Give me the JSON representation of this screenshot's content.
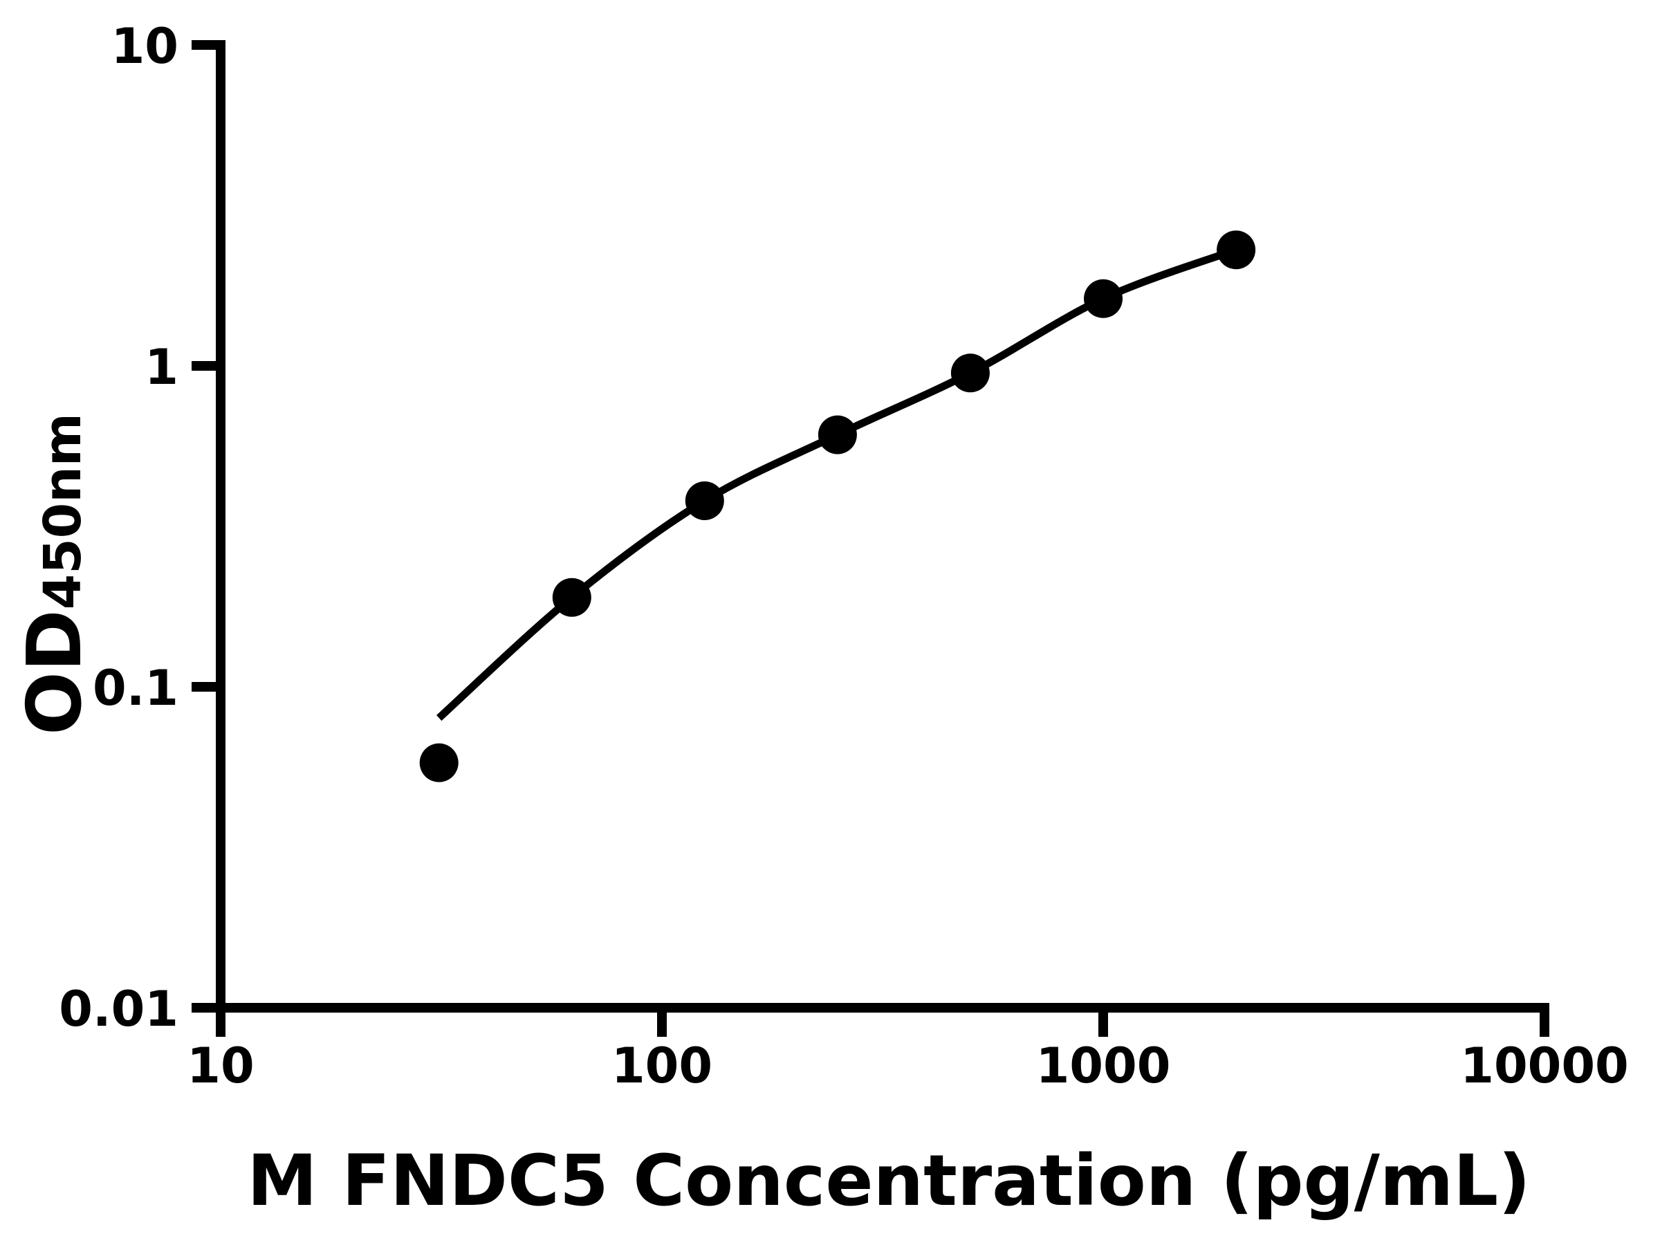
{
  "figure": {
    "background_color": "#ffffff",
    "ink_color": "#000000"
  },
  "chart_data": {
    "type": "scatter",
    "subtype": "elisa-standard-curve",
    "title": "",
    "xlabel": "M FNDC5 Concentration (pg/mL)",
    "ylabel": "OD450nm",
    "ylabel_main": "OD",
    "ylabel_sub": "450nm",
    "x_scale": "log10",
    "y_scale": "log10",
    "xlim": [
      10,
      10000
    ],
    "ylim": [
      0.01,
      10
    ],
    "grid": false,
    "legend": false,
    "x_ticks": [
      {
        "value": 10,
        "label": "10"
      },
      {
        "value": 100,
        "label": "100"
      },
      {
        "value": 1000,
        "label": "1000"
      },
      {
        "value": 10000,
        "label": "10000"
      }
    ],
    "y_ticks": [
      {
        "value": 10,
        "label": "10"
      },
      {
        "value": 1,
        "label": "1"
      },
      {
        "value": 0.1,
        "label": "0.1"
      },
      {
        "value": 0.01,
        "label": "0.01"
      }
    ],
    "series": [
      {
        "name": "standards",
        "type": "scatter",
        "marker": "filled-circle",
        "color": "#000000",
        "points": [
          {
            "x": 31.25,
            "y": 0.058
          },
          {
            "x": 62.5,
            "y": 0.19
          },
          {
            "x": 125,
            "y": 0.38
          },
          {
            "x": 250,
            "y": 0.61
          },
          {
            "x": 500,
            "y": 0.95
          },
          {
            "x": 1000,
            "y": 1.62
          },
          {
            "x": 2000,
            "y": 2.3
          }
        ]
      },
      {
        "name": "fit-curve",
        "type": "line",
        "color": "#000000",
        "points": [
          {
            "x": 31.25,
            "y": 0.08
          },
          {
            "x": 62.5,
            "y": 0.19
          },
          {
            "x": 125,
            "y": 0.38
          },
          {
            "x": 250,
            "y": 0.61
          },
          {
            "x": 500,
            "y": 0.95
          },
          {
            "x": 1000,
            "y": 1.62
          },
          {
            "x": 2000,
            "y": 2.3
          }
        ]
      }
    ]
  }
}
